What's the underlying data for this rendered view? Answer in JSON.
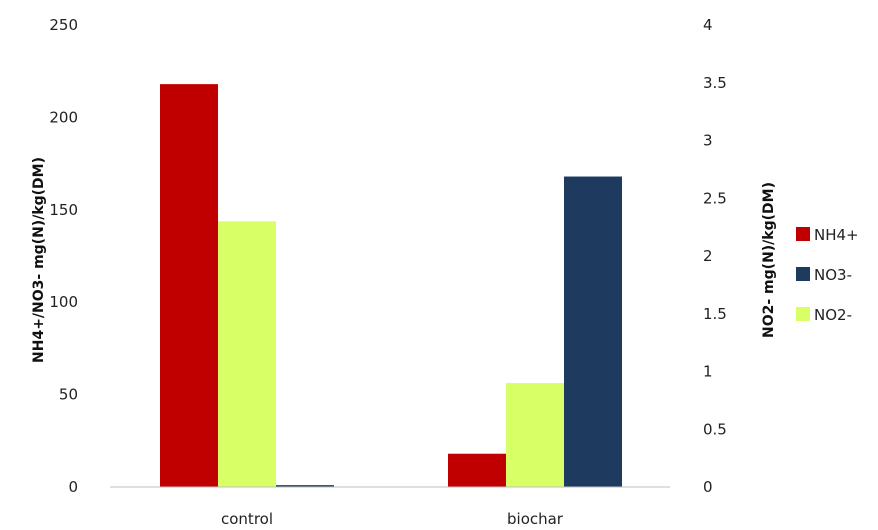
{
  "chart_data": {
    "type": "bar",
    "categories": [
      "control",
      "biochar"
    ],
    "series": [
      {
        "name": "NH4+",
        "axis": "left",
        "color": "#c00000",
        "values": [
          218,
          18
        ]
      },
      {
        "name": "NO2-",
        "axis": "right",
        "color": "#d9ff66",
        "values": [
          2.3,
          0.9
        ]
      },
      {
        "name": "NO3-",
        "axis": "left",
        "color": "#1f3a5f",
        "values": [
          1,
          168
        ]
      }
    ],
    "ylabel": "NH4+/NO3- mg(N)/kg(DM)",
    "y2label": "NO2- mg(N)/kg(DM)",
    "ylim": [
      0,
      250
    ],
    "y2lim": [
      0,
      4
    ],
    "yticks": [
      "0",
      "50",
      "100",
      "150",
      "200",
      "250"
    ],
    "y2ticks": [
      "0",
      "0.5",
      "1",
      "1.5",
      "2",
      "2.5",
      "3",
      "3.5",
      "4"
    ],
    "legend": [
      {
        "name": "NH4+",
        "color": "#c00000"
      },
      {
        "name": "NO3-",
        "color": "#1f3a5f"
      },
      {
        "name": "NO2-",
        "color": "#d9ff66"
      }
    ],
    "legend_position": "right",
    "grid": false
  }
}
